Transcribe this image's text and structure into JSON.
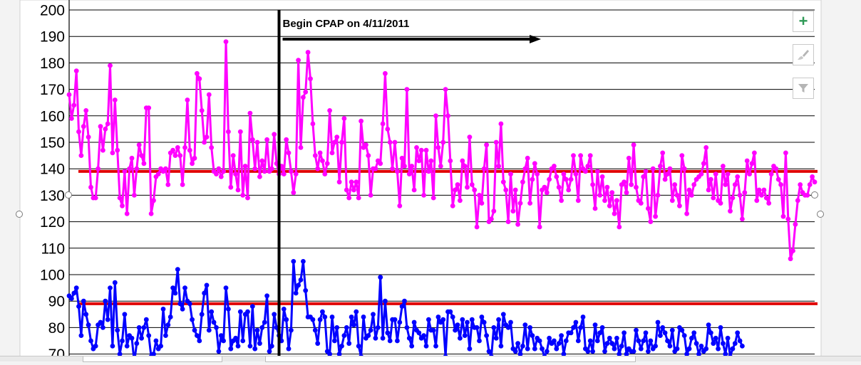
{
  "chart_data": {
    "type": "line",
    "title": "",
    "xlabel": "",
    "ylabel": "",
    "ylim": [
      70,
      200
    ],
    "yticks": [
      "70",
      "80",
      "90",
      "100",
      "110",
      "120",
      "130",
      "140",
      "150",
      "160",
      "170",
      "180",
      "190",
      "200"
    ],
    "grid": true,
    "legend": "none",
    "annotation": {
      "text": "Begin CPAP on 4/11/2011",
      "marker_index": 87
    },
    "reference_lines": [
      {
        "y": 139,
        "color": "#e00000"
      },
      {
        "y": 89,
        "color": "#e00000"
      }
    ],
    "series": [
      {
        "color": "#ff00ff",
        "values": [
          168,
          159,
          164,
          177,
          154,
          145,
          156,
          162,
          152,
          133,
          129,
          129,
          140,
          156,
          147,
          155,
          157,
          179,
          146,
          166,
          147,
          129,
          126,
          139,
          123,
          140,
          144,
          130,
          140,
          149,
          145,
          142,
          163,
          163,
          123,
          128,
          137,
          138,
          140,
          139,
          140,
          134,
          146,
          147,
          145,
          148,
          145,
          134,
          148,
          166,
          147,
          142,
          144,
          176,
          174,
          162,
          150,
          152,
          168,
          148,
          139,
          138,
          140,
          137,
          139,
          188,
          154,
          133,
          145,
          138,
          132,
          154,
          130,
          141,
          129,
          161,
          151,
          140,
          150,
          137,
          143,
          139,
          151,
          139,
          140,
          153,
          142,
          138,
          141,
          138,
          151,
          146,
          139,
          131,
          138,
          181,
          148,
          167,
          169,
          184,
          174,
          157,
          145,
          140,
          146,
          143,
          138,
          142,
          162,
          146,
          150,
          152,
          135,
          150,
          159,
          132,
          129,
          135,
          132,
          135,
          129,
          158,
          148,
          149,
          145,
          130,
          140,
          140,
          143,
          142,
          157,
          176,
          155,
          150,
          140,
          150,
          139,
          126,
          144,
          141,
          170,
          138,
          141,
          132,
          148,
          143,
          147,
          130,
          147,
          139,
          143,
          129,
          160,
          148,
          141,
          150,
          170,
          160,
          143,
          126,
          132,
          134,
          128,
          143,
          141,
          133,
          152,
          134,
          132,
          118,
          130,
          127,
          140,
          149,
          120,
          121,
          124,
          150,
          141,
          157,
          135,
          132,
          120,
          138,
          124,
          132,
          119,
          127,
          135,
          140,
          144,
          127,
          136,
          142,
          138,
          118,
          132,
          133,
          131,
          136,
          140,
          141,
          137,
          133,
          128,
          138,
          136,
          132,
          136,
          145,
          138,
          128,
          145,
          140,
          139,
          141,
          145,
          134,
          125,
          139,
          130,
          137,
          128,
          133,
          126,
          131,
          123,
          128,
          118,
          134,
          135,
          131,
          144,
          134,
          149,
          133,
          128,
          127,
          137,
          139,
          125,
          120,
          140,
          122,
          130,
          141,
          146,
          136,
          138,
          140,
          128,
          134,
          130,
          126,
          145,
          140,
          123,
          132,
          130,
          134,
          136,
          137,
          138,
          142,
          148,
          132,
          136,
          129,
          138,
          128,
          127,
          141,
          134,
          138,
          124,
          129,
          134,
          137,
          130,
          121,
          131,
          143,
          138,
          142,
          146,
          128,
          132,
          130,
          132,
          129,
          127,
          138,
          141,
          140,
          136,
          134,
          122,
          146,
          121,
          106,
          109,
          119,
          128,
          134,
          131,
          130,
          130,
          134,
          137,
          135
        ]
      },
      {
        "color": "#0000ff",
        "values": [
          92,
          91,
          93,
          95,
          88,
          77,
          90,
          85,
          81,
          75,
          72,
          73,
          81,
          82,
          80,
          90,
          83,
          95,
          73,
          97,
          79,
          70,
          75,
          85,
          73,
          77,
          76,
          67,
          74,
          80,
          76,
          80,
          83,
          77,
          69,
          70,
          75,
          72,
          73,
          87,
          77,
          81,
          84,
          95,
          93,
          102,
          89,
          87,
          95,
          90,
          89,
          83,
          79,
          77,
          75,
          85,
          93,
          96,
          79,
          86,
          82,
          80,
          71,
          77,
          75,
          95,
          87,
          72,
          75,
          76,
          73,
          86,
          75,
          85,
          86,
          73,
          88,
          72,
          79,
          74,
          80,
          82,
          92,
          71,
          73,
          85,
          80,
          77,
          75,
          87,
          83,
          72,
          79,
          105,
          93,
          96,
          98,
          105,
          94,
          84,
          84,
          83,
          79,
          74,
          83,
          86,
          84,
          71,
          70,
          84,
          75,
          80,
          70,
          73,
          77,
          80,
          74,
          84,
          81,
          86,
          73,
          69,
          84,
          76,
          77,
          79,
          85,
          76,
          80,
          99,
          76,
          90,
          78,
          75,
          83,
          83,
          75,
          82,
          88,
          90,
          80,
          76,
          73,
          82,
          79,
          78,
          76,
          77,
          73,
          83,
          79,
          79,
          73,
          84,
          82,
          83,
          69,
          86,
          86,
          84,
          79,
          81,
          76,
          83,
          77,
          82,
          72,
          83,
          80,
          80,
          75,
          84,
          82,
          77,
          71,
          69,
          80,
          76,
          83,
          73,
          85,
          81,
          80,
          82,
          72,
          71,
          74,
          70,
          73,
          81,
          72,
          80,
          77,
          72,
          76,
          75,
          72,
          69,
          71,
          76,
          74,
          75,
          72,
          74,
          77,
          70,
          75,
          78,
          78,
          80,
          82,
          75,
          80,
          84,
          72,
          71,
          75,
          71,
          81,
          75,
          78,
          80,
          71,
          74,
          76,
          74,
          72,
          76,
          70,
          73,
          78,
          70,
          72,
          71,
          71,
          79,
          75,
          72,
          75,
          78,
          71,
          75,
          72,
          73,
          82,
          77,
          80,
          78,
          75,
          73,
          79,
          71,
          72,
          80,
          79,
          77,
          70,
          72,
          76,
          78,
          74,
          70,
          73,
          71,
          72,
          81,
          78,
          74,
          76,
          72,
          80,
          74,
          70,
          76,
          69,
          72,
          74,
          78,
          75,
          73
        ]
      }
    ]
  },
  "toolbar": {
    "add_label": "+",
    "style_icon": "paintbrush-icon",
    "filter_icon": "funnel-icon"
  }
}
